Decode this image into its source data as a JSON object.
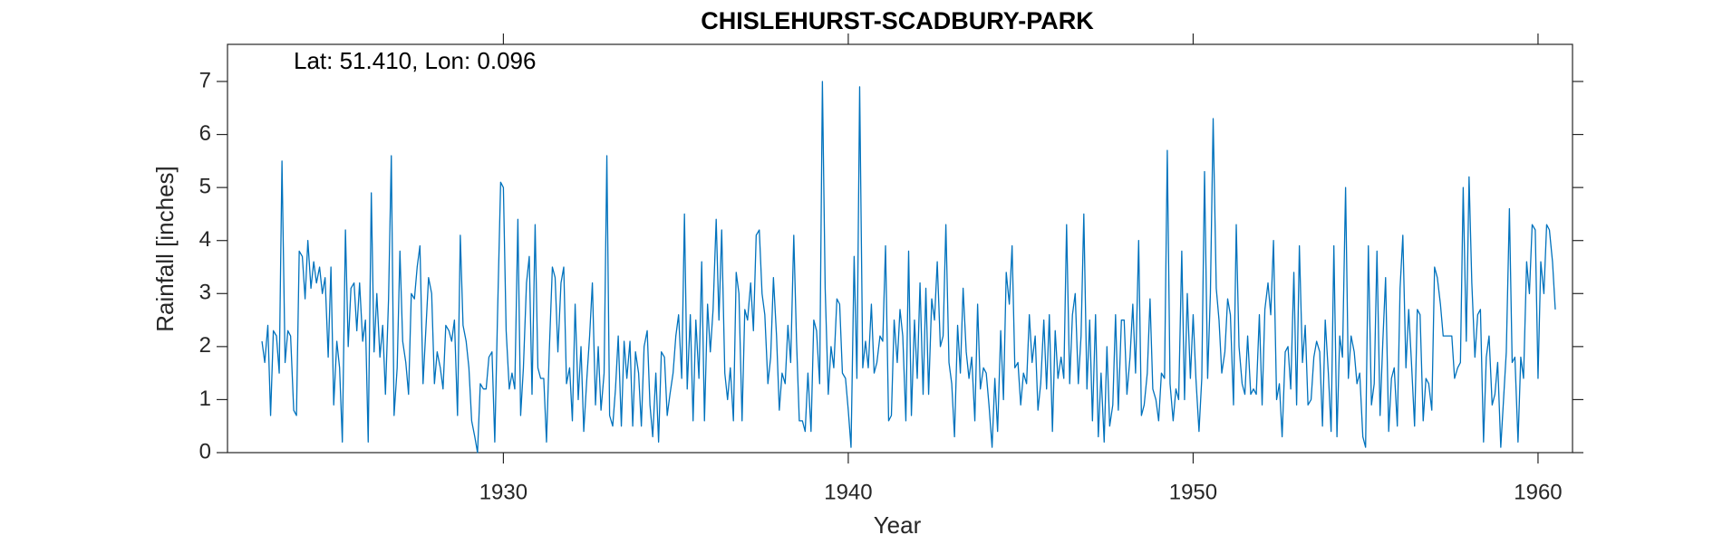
{
  "chart_data": {
    "type": "line",
    "title": "CHISLEHURST-SCADBURY-PARK",
    "annotation": "Lat: 51.410, Lon: 0.096",
    "x_label": "Year",
    "y_label": "Rainfall [inches]",
    "color": "#0072bd",
    "xlim": [
      1922,
      1961
    ],
    "ylim": [
      0,
      7.7
    ],
    "xticks": [
      1930,
      1940,
      1950,
      1960
    ],
    "yticks": [
      0,
      1,
      2,
      3,
      4,
      5,
      6,
      7
    ],
    "x": [
      1923.0,
      1923.08,
      1923.17,
      1923.25,
      1923.33,
      1923.42,
      1923.5,
      1923.58,
      1923.67,
      1923.75,
      1923.83,
      1923.92,
      1924.0,
      1924.08,
      1924.17,
      1924.25,
      1924.33,
      1924.42,
      1924.5,
      1924.58,
      1924.67,
      1924.75,
      1924.83,
      1924.92,
      1925.0,
      1925.08,
      1925.17,
      1925.25,
      1925.33,
      1925.42,
      1925.5,
      1925.58,
      1925.67,
      1925.75,
      1925.83,
      1925.92,
      1926.0,
      1926.08,
      1926.17,
      1926.25,
      1926.33,
      1926.42,
      1926.5,
      1926.58,
      1926.67,
      1926.75,
      1926.83,
      1926.92,
      1927.0,
      1927.08,
      1927.17,
      1927.25,
      1927.33,
      1927.42,
      1927.5,
      1927.58,
      1927.67,
      1927.75,
      1927.83,
      1927.92,
      1928.0,
      1928.08,
      1928.17,
      1928.25,
      1928.33,
      1928.42,
      1928.5,
      1928.58,
      1928.67,
      1928.75,
      1928.83,
      1928.92,
      1929.0,
      1929.08,
      1929.17,
      1929.25,
      1929.33,
      1929.42,
      1929.5,
      1929.58,
      1929.67,
      1929.75,
      1929.83,
      1929.92,
      1930.0,
      1930.08,
      1930.17,
      1930.25,
      1930.33,
      1930.42,
      1930.5,
      1930.58,
      1930.67,
      1930.75,
      1930.83,
      1930.92,
      1931.0,
      1931.08,
      1931.17,
      1931.25,
      1931.33,
      1931.42,
      1931.5,
      1931.58,
      1931.67,
      1931.75,
      1931.83,
      1931.92,
      1932.0,
      1932.08,
      1932.17,
      1932.25,
      1932.33,
      1932.42,
      1932.5,
      1932.58,
      1932.67,
      1932.75,
      1932.83,
      1932.92,
      1933.0,
      1933.08,
      1933.17,
      1933.25,
      1933.33,
      1933.42,
      1933.5,
      1933.58,
      1933.67,
      1933.75,
      1933.83,
      1933.92,
      1934.0,
      1934.08,
      1934.17,
      1934.25,
      1934.33,
      1934.42,
      1934.5,
      1934.58,
      1934.67,
      1934.75,
      1934.83,
      1934.92,
      1935.0,
      1935.08,
      1935.17,
      1935.25,
      1935.33,
      1935.42,
      1935.5,
      1935.58,
      1935.67,
      1935.75,
      1935.83,
      1935.92,
      1936.0,
      1936.08,
      1936.17,
      1936.25,
      1936.33,
      1936.42,
      1936.5,
      1936.58,
      1936.67,
      1936.75,
      1936.83,
      1936.92,
      1937.0,
      1937.08,
      1937.17,
      1937.25,
      1937.33,
      1937.42,
      1937.5,
      1937.58,
      1937.67,
      1937.75,
      1937.83,
      1937.92,
      1938.0,
      1938.08,
      1938.17,
      1938.25,
      1938.33,
      1938.42,
      1938.5,
      1938.58,
      1938.67,
      1938.75,
      1938.83,
      1938.92,
      1939.0,
      1939.08,
      1939.17,
      1939.25,
      1939.33,
      1939.42,
      1939.5,
      1939.58,
      1939.67,
      1939.75,
      1939.83,
      1939.92,
      1940.0,
      1940.08,
      1940.17,
      1940.25,
      1940.33,
      1940.42,
      1940.5,
      1940.58,
      1940.67,
      1940.75,
      1940.83,
      1940.92,
      1941.0,
      1941.08,
      1941.17,
      1941.25,
      1941.33,
      1941.42,
      1941.5,
      1941.58,
      1941.67,
      1941.75,
      1941.83,
      1941.92,
      1942.0,
      1942.08,
      1942.17,
      1942.25,
      1942.33,
      1942.42,
      1942.5,
      1942.58,
      1942.67,
      1942.75,
      1942.83,
      1942.92,
      1943.0,
      1943.08,
      1943.17,
      1943.25,
      1943.33,
      1943.42,
      1943.5,
      1943.58,
      1943.67,
      1943.75,
      1943.83,
      1943.92,
      1944.0,
      1944.08,
      1944.17,
      1944.25,
      1944.33,
      1944.42,
      1944.5,
      1944.58,
      1944.67,
      1944.75,
      1944.83,
      1944.92,
      1945.0,
      1945.08,
      1945.17,
      1945.25,
      1945.33,
      1945.42,
      1945.5,
      1945.58,
      1945.67,
      1945.75,
      1945.83,
      1945.92,
      1946.0,
      1946.08,
      1946.17,
      1946.25,
      1946.33,
      1946.42,
      1946.5,
      1946.58,
      1946.67,
      1946.75,
      1946.83,
      1946.92,
      1947.0,
      1947.08,
      1947.17,
      1947.25,
      1947.33,
      1947.42,
      1947.5,
      1947.58,
      1947.67,
      1947.75,
      1947.83,
      1947.92,
      1948.0,
      1948.08,
      1948.17,
      1948.25,
      1948.33,
      1948.42,
      1948.5,
      1948.58,
      1948.67,
      1948.75,
      1948.83,
      1948.92,
      1949.0,
      1949.08,
      1949.17,
      1949.25,
      1949.33,
      1949.42,
      1949.5,
      1949.58,
      1949.67,
      1949.75,
      1949.83,
      1949.92,
      1950.0,
      1950.08,
      1950.17,
      1950.25,
      1950.33,
      1950.42,
      1950.5,
      1950.58,
      1950.67,
      1950.75,
      1950.83,
      1950.92,
      1951.0,
      1951.08,
      1951.17,
      1951.25,
      1951.33,
      1951.42,
      1951.5,
      1951.58,
      1951.67,
      1951.75,
      1951.83,
      1951.92,
      1952.0,
      1952.08,
      1952.17,
      1952.25,
      1952.33,
      1952.42,
      1952.5,
      1952.58,
      1952.67,
      1952.75,
      1952.83,
      1952.92,
      1953.0,
      1953.08,
      1953.17,
      1953.25,
      1953.33,
      1953.42,
      1953.5,
      1953.58,
      1953.67,
      1953.75,
      1953.83,
      1953.92,
      1954.0,
      1954.08,
      1954.17,
      1954.25,
      1954.33,
      1954.42,
      1954.5,
      1954.58,
      1954.67,
      1954.75,
      1954.83,
      1954.92,
      1955.0,
      1955.08,
      1955.17,
      1955.25,
      1955.33,
      1955.42,
      1955.5,
      1955.58,
      1955.67,
      1955.75,
      1955.83,
      1955.92,
      1956.0,
      1956.08,
      1956.17,
      1956.25,
      1956.33,
      1956.42,
      1956.5,
      1956.58,
      1956.67,
      1956.75,
      1956.83,
      1956.92,
      1957.0,
      1957.08,
      1957.17,
      1957.25,
      1957.33,
      1957.42,
      1957.5,
      1957.58,
      1957.67,
      1957.75,
      1957.83,
      1957.92,
      1958.0,
      1958.08,
      1958.17,
      1958.25,
      1958.33,
      1958.42,
      1958.5,
      1958.58,
      1958.67,
      1958.75,
      1958.83,
      1958.92,
      1959.0,
      1959.08,
      1959.17,
      1959.25,
      1959.33,
      1959.42,
      1959.5,
      1959.58,
      1959.67,
      1959.75,
      1959.83,
      1959.92,
      1960.0,
      1960.08,
      1960.17,
      1960.25,
      1960.33,
      1960.42,
      1960.5
    ],
    "values": [
      2.1,
      1.7,
      2.4,
      0.7,
      2.3,
      2.2,
      1.5,
      5.5,
      1.7,
      2.3,
      2.2,
      0.8,
      0.7,
      3.8,
      3.7,
      2.9,
      4.0,
      3.1,
      3.6,
      3.2,
      3.5,
      3.0,
      3.3,
      1.8,
      3.5,
      0.9,
      2.1,
      1.6,
      0.2,
      4.2,
      2.0,
      3.1,
      3.2,
      2.3,
      3.2,
      2.1,
      2.5,
      0.2,
      4.9,
      1.9,
      3.0,
      1.8,
      2.4,
      1.1,
      2.9,
      5.6,
      0.7,
      1.6,
      3.8,
      2.1,
      1.7,
      1.1,
      3.0,
      2.9,
      3.5,
      3.9,
      1.3,
      2.3,
      3.3,
      3.0,
      1.3,
      1.9,
      1.6,
      1.2,
      2.4,
      2.3,
      2.1,
      2.5,
      0.7,
      4.1,
      2.4,
      2.1,
      1.6,
      0.6,
      0.3,
      0.0,
      1.3,
      1.2,
      1.2,
      1.8,
      1.9,
      0.2,
      2.6,
      5.1,
      5.0,
      2.3,
      1.2,
      1.5,
      1.2,
      4.4,
      0.7,
      1.6,
      3.2,
      3.7,
      1.1,
      4.3,
      1.6,
      1.4,
      1.4,
      0.2,
      1.9,
      3.5,
      3.3,
      1.9,
      3.2,
      3.5,
      1.3,
      1.6,
      0.6,
      2.8,
      1.0,
      2.0,
      0.4,
      1.4,
      2.2,
      3.2,
      0.9,
      2.0,
      0.8,
      1.5,
      5.6,
      0.7,
      0.5,
      1.2,
      2.2,
      0.5,
      2.1,
      1.4,
      2.1,
      0.5,
      1.9,
      1.5,
      0.5,
      2.0,
      2.3,
      0.9,
      0.3,
      1.5,
      0.2,
      1.9,
      1.8,
      0.7,
      1.1,
      1.5,
      2.2,
      2.6,
      1.4,
      4.5,
      1.2,
      2.6,
      0.6,
      2.5,
      1.4,
      3.6,
      0.6,
      2.8,
      1.9,
      2.7,
      4.4,
      2.5,
      4.2,
      1.5,
      1.0,
      1.6,
      0.6,
      3.4,
      3.0,
      0.6,
      2.7,
      2.5,
      3.2,
      2.3,
      4.1,
      4.2,
      3.0,
      2.6,
      1.3,
      1.8,
      3.3,
      2.2,
      0.8,
      1.5,
      1.3,
      2.4,
      1.7,
      4.1,
      2.1,
      0.6,
      0.6,
      0.4,
      1.5,
      0.4,
      2.5,
      2.3,
      1.3,
      7.0,
      3.1,
      1.1,
      2.0,
      1.6,
      2.9,
      2.8,
      1.5,
      1.4,
      0.8,
      0.1,
      3.7,
      1.4,
      6.9,
      1.6,
      2.1,
      1.6,
      2.8,
      1.5,
      1.7,
      2.2,
      2.1,
      3.9,
      0.6,
      0.7,
      2.5,
      1.7,
      2.7,
      2.2,
      0.6,
      3.8,
      0.7,
      2.5,
      1.4,
      3.2,
      1.1,
      3.1,
      1.1,
      2.9,
      2.5,
      3.6,
      2.0,
      2.2,
      4.3,
      1.7,
      1.3,
      0.3,
      2.4,
      1.5,
      3.1,
      1.9,
      1.4,
      1.8,
      0.6,
      2.8,
      1.2,
      1.6,
      1.5,
      0.9,
      0.1,
      1.4,
      0.4,
      2.3,
      1.0,
      3.4,
      2.8,
      3.9,
      1.6,
      1.7,
      0.9,
      1.5,
      1.3,
      2.6,
      1.7,
      2.2,
      0.8,
      1.3,
      2.5,
      1.2,
      2.6,
      0.4,
      2.3,
      1.4,
      1.8,
      1.4,
      4.3,
      1.3,
      2.6,
      3.0,
      1.3,
      2.2,
      4.5,
      1.2,
      2.5,
      0.6,
      2.6,
      0.3,
      1.5,
      0.2,
      2.0,
      0.5,
      0.9,
      2.6,
      0.8,
      2.5,
      2.5,
      1.1,
      1.8,
      2.8,
      1.5,
      4.0,
      0.7,
      0.9,
      1.5,
      2.9,
      1.2,
      1.0,
      0.6,
      1.5,
      1.4,
      5.7,
      1.3,
      0.6,
      1.2,
      1.0,
      3.8,
      1.0,
      3.0,
      1.4,
      2.6,
      1.4,
      0.4,
      1.4,
      5.3,
      1.4,
      3.0,
      6.3,
      3.1,
      2.5,
      1.5,
      1.9,
      2.9,
      2.6,
      0.9,
      4.3,
      2.0,
      1.3,
      1.1,
      2.2,
      1.1,
      1.2,
      1.1,
      2.6,
      0.9,
      2.7,
      3.2,
      2.6,
      4.0,
      1.0,
      1.3,
      0.3,
      1.9,
      2.0,
      1.2,
      3.4,
      0.9,
      3.9,
      1.7,
      2.4,
      0.9,
      1.0,
      1.8,
      2.1,
      1.9,
      0.5,
      2.5,
      1.5,
      0.4,
      3.9,
      0.3,
      2.2,
      1.8,
      5.0,
      1.4,
      2.2,
      1.9,
      1.3,
      1.5,
      0.3,
      0.1,
      3.9,
      0.9,
      1.3,
      3.8,
      0.7,
      2.1,
      3.3,
      0.4,
      1.4,
      1.6,
      0.5,
      3.1,
      4.1,
      1.6,
      2.7,
      1.7,
      0.5,
      2.7,
      2.6,
      0.6,
      1.4,
      1.3,
      0.8,
      3.5,
      3.3,
      2.8,
      2.2,
      2.2,
      2.2,
      2.2,
      1.4,
      1.6,
      1.7,
      5.0,
      2.1,
      5.2,
      3.2,
      1.8,
      2.6,
      2.7,
      0.2,
      1.8,
      2.2,
      0.9,
      1.1,
      1.7,
      0.1,
      1.0,
      1.9,
      4.6,
      1.7,
      1.8,
      0.2,
      1.8,
      1.4,
      3.6,
      3.0,
      4.3,
      4.2,
      1.4,
      3.6,
      3.0,
      4.3,
      4.2,
      3.6,
      2.7
    ]
  }
}
